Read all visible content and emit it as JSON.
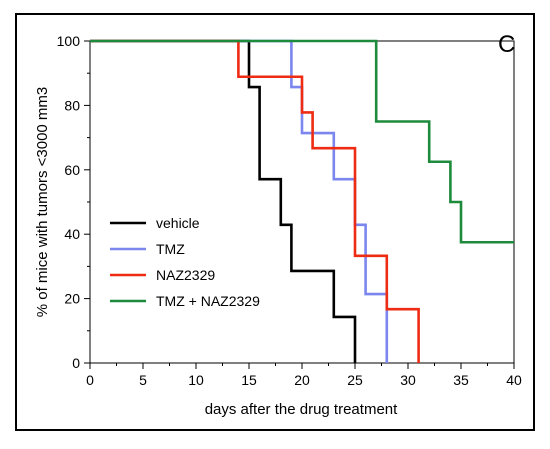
{
  "chart_data": {
    "type": "line",
    "step": true,
    "panel_label": "C",
    "xlabel": "days after the drug treatment",
    "ylabel": "% of mice with tumors <3000 mm3",
    "xlim": [
      0,
      40
    ],
    "ylim": [
      0,
      100
    ],
    "xticks": [
      0,
      5,
      10,
      15,
      20,
      25,
      30,
      35,
      40
    ],
    "yticks": [
      0,
      20,
      40,
      60,
      80,
      100
    ],
    "legend_position": "lower-left",
    "series": [
      {
        "name": "vehicle",
        "color": "#000000",
        "x": [
          0,
          15,
          16,
          18,
          19,
          23,
          25
        ],
        "y": [
          100,
          85.7,
          57.1,
          42.9,
          28.6,
          14.3,
          0
        ]
      },
      {
        "name": "TMZ",
        "color": "#7b86ee",
        "x": [
          0,
          19,
          20,
          23,
          25,
          26,
          28
        ],
        "y": [
          100,
          85.7,
          71.4,
          57.1,
          42.9,
          21.4,
          0
        ]
      },
      {
        "name": "NAZ2329",
        "color": "#ee2c14",
        "x": [
          0,
          14,
          20,
          21,
          25,
          28,
          31
        ],
        "y": [
          100,
          88.9,
          77.8,
          66.7,
          33.3,
          16.7,
          0
        ]
      },
      {
        "name": "TMZ + NAZ2329",
        "color": "#1d8a3c",
        "x": [
          0,
          27,
          32,
          34,
          35,
          40
        ],
        "y": [
          100,
          75,
          62.5,
          50,
          37.5,
          37.5
        ]
      }
    ]
  }
}
